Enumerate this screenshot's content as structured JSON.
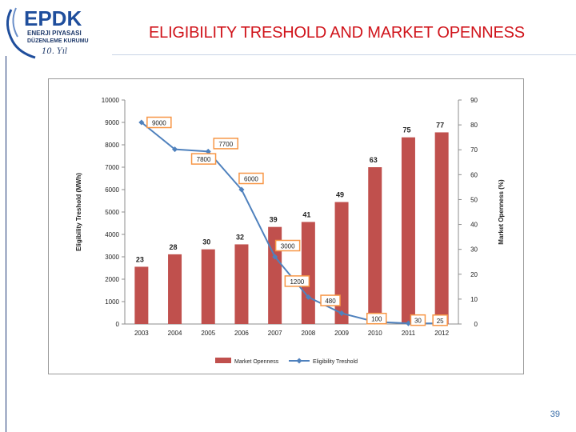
{
  "header": {
    "title": "ELIGIBILITY TRESHOLD AND MARKET OPENNESS",
    "logo": {
      "brand": "EPDK",
      "line1": "ENERJI PIYASASI",
      "line2": "DÜZENLEME KURUMU",
      "monogram": "10. Yıl"
    }
  },
  "page_number": "39",
  "colors": {
    "bar": "#c0504d",
    "line": "#4f81bd",
    "label_box": "#f79646",
    "title": "#d0141b"
  },
  "chart_data": {
    "type": "bar+line",
    "categories": [
      "2003",
      "2004",
      "2005",
      "2006",
      "2007",
      "2008",
      "2009",
      "2010",
      "2011",
      "2012"
    ],
    "series": [
      {
        "name": "Market Openness",
        "type": "bar",
        "axis": "right",
        "values": [
          23,
          28,
          30,
          32,
          39,
          41,
          49,
          63,
          75,
          77
        ]
      },
      {
        "name": "Eligibility Treshold",
        "type": "line",
        "axis": "left",
        "values": [
          9000,
          7800,
          7700,
          6000,
          3000,
          1200,
          480,
          100,
          30,
          25
        ]
      }
    ],
    "line_labels": [
      "9000",
      "7800",
      "7700",
      "6000",
      "3000",
      "1200",
      "480",
      "100",
      "30",
      "25"
    ],
    "ylabel_left": "Eligibility Treshold (MWh)",
    "ylabel_right": "Market Openness (%)",
    "ylim_left": [
      0,
      10000
    ],
    "ylim_right": [
      0,
      90
    ],
    "yticks_left": [
      "0",
      "1000",
      "2000",
      "3000",
      "4000",
      "5000",
      "6000",
      "7000",
      "8000",
      "9000",
      "10000"
    ],
    "yticks_right": [
      "0",
      "10",
      "20",
      "30",
      "40",
      "50",
      "60",
      "70",
      "80",
      "90"
    ],
    "grid": false,
    "legend_position": "bottom"
  }
}
